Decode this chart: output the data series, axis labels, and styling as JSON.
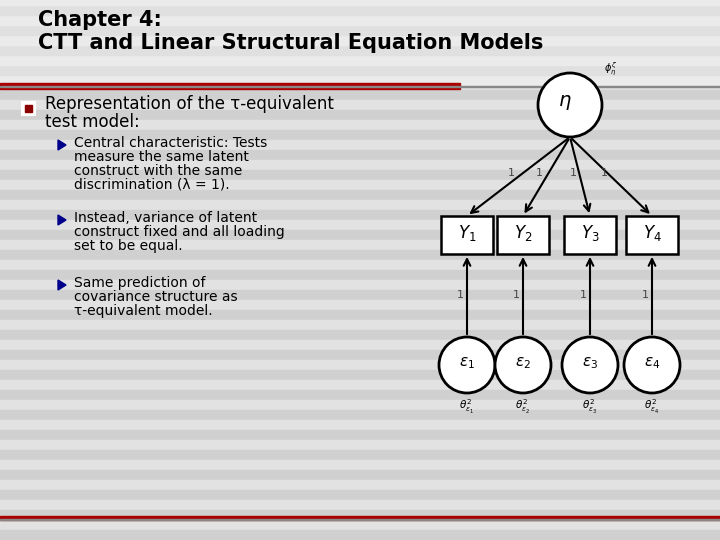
{
  "title_line1": "Chapter 4:",
  "title_line2": "CTT and Linear Structural Equation Models",
  "bg_stripes": [
    [
      "#e8e8e8",
      "#d8d8d8"
    ],
    10
  ],
  "red_line_color": "#aa0000",
  "gray_line_color": "#999999",
  "bullet_color": "#8b0000",
  "sub_bullet_color": "#00008b",
  "text_color": "#000000",
  "main_bullet": "Representation of the τ-equivalent",
  "main_bullet2": "test model:",
  "sub_bullets": [
    [
      "Central characteristic: Tests",
      "measure the same latent",
      "construct with the same",
      "discrimination (λ = 1)."
    ],
    [
      "Instead, variance of latent",
      "construct fixed and all loading",
      "set to be equal."
    ],
    [
      "Same prediction of",
      "covariance structure as",
      "τ-equivalent model."
    ]
  ]
}
